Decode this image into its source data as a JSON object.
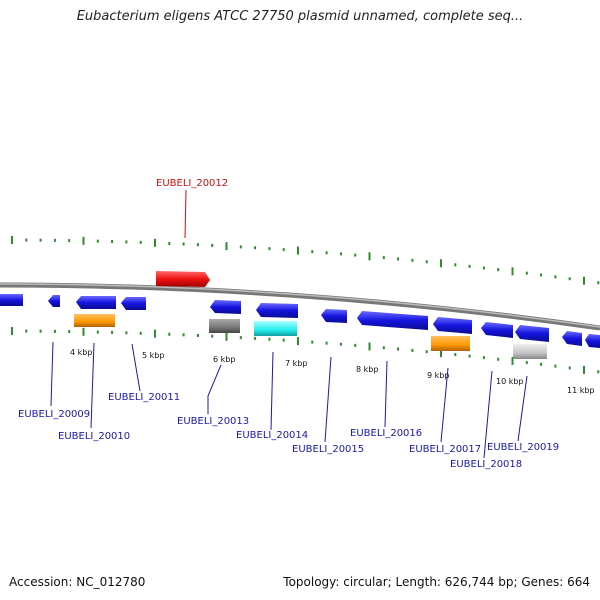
{
  "title": "Eubacterium eligens ATCC 27750 plasmid unnamed, complete seq...",
  "footer": {
    "accession": "Accession: NC_012780",
    "summary": "Topology: circular; Length: 626,744 bp; Genes: 664"
  },
  "colors": {
    "backbone": "#888888",
    "ticks": "#2e8b2e",
    "gene_blue": "#1515e0",
    "highlight": "#ee1111",
    "orange": "#ff9900",
    "cyan": "#22eeee",
    "dark_gray": "#777777",
    "light_gray": "#c4c4c4",
    "label_blue": "#1a1aa8",
    "label_red": "#cc1111"
  },
  "scale_labels": [
    "4 kbp",
    "5 kbp",
    "6 kbp",
    "7 kbp",
    "8 kbp",
    "9 kbp",
    "10 kbp",
    "11 kbp"
  ],
  "genes": [
    {
      "label": "EUBELI_20009",
      "color": "blue"
    },
    {
      "label": "EUBELI_20010",
      "color": "orange"
    },
    {
      "label": "EUBELI_20011",
      "color": "blue"
    },
    {
      "label": "EUBELI_20012",
      "color": "red"
    },
    {
      "label": "EUBELI_20013",
      "color": "dark_gray"
    },
    {
      "label": "EUBELI_20014",
      "color": "cyan"
    },
    {
      "label": "EUBELI_20015",
      "color": "blue"
    },
    {
      "label": "EUBELI_20016",
      "color": "blue"
    },
    {
      "label": "EUBELI_20017",
      "color": "orange"
    },
    {
      "label": "EUBELI_20018",
      "color": "blue"
    },
    {
      "label": "EUBELI_20019",
      "color": "light_gray"
    }
  ]
}
